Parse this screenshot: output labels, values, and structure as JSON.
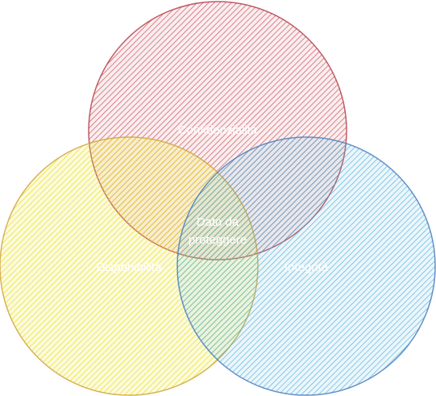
{
  "diagram": {
    "type": "venn",
    "circles": [
      {
        "id": "confidentiality",
        "label": "Confidenzialità",
        "color": "#c8444c"
      },
      {
        "id": "availability",
        "label": "Disponibilità",
        "color": "#e3da1c"
      },
      {
        "id": "integrity",
        "label": "Integrità",
        "color": "#3fa9d9"
      }
    ],
    "center": {
      "lines": [
        "Dato da",
        "proteggere"
      ]
    }
  }
}
